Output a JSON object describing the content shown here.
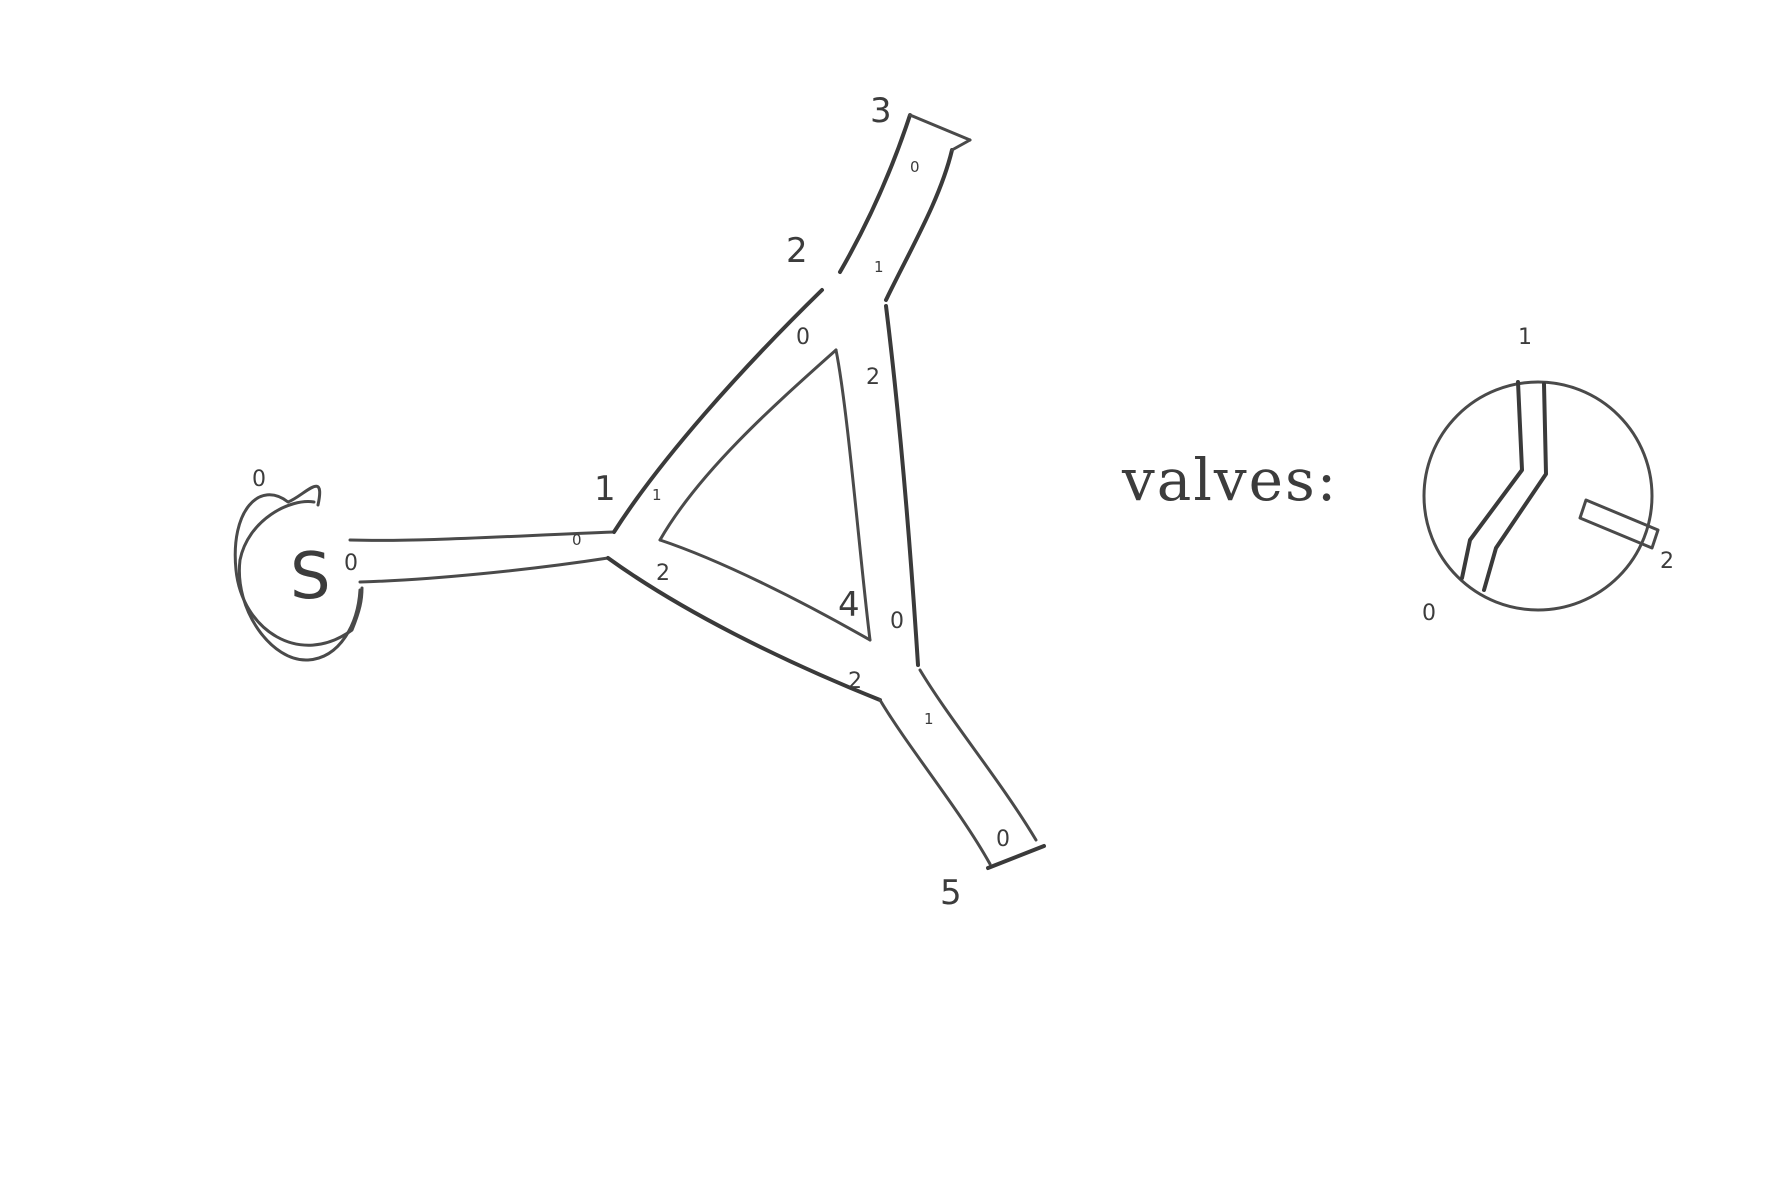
{
  "diagram": {
    "source_label": "S",
    "source_port": "0",
    "source_top_label": "0",
    "junction_left": {
      "port_0": "0",
      "port_1": "1",
      "port_2": "2",
      "node_label": "1"
    },
    "junction_top": {
      "port_0": "0",
      "port_1": "1",
      "port_2": "2",
      "node_label": "2"
    },
    "junction_bottom": {
      "port_0": "0",
      "port_1": "1",
      "port_2": "2",
      "node_label": "4"
    },
    "inner_triangle": {
      "top_port": "2",
      "left_port": "1",
      "bottom_port": "2"
    },
    "outlet_top": {
      "node_label": "3",
      "port": "0"
    },
    "outlet_bottom": {
      "node_label": "5",
      "port": "0"
    }
  },
  "legend": {
    "title": "valves:",
    "valve_ports": {
      "top": "1",
      "right": "2",
      "bottom_left": "0"
    }
  }
}
